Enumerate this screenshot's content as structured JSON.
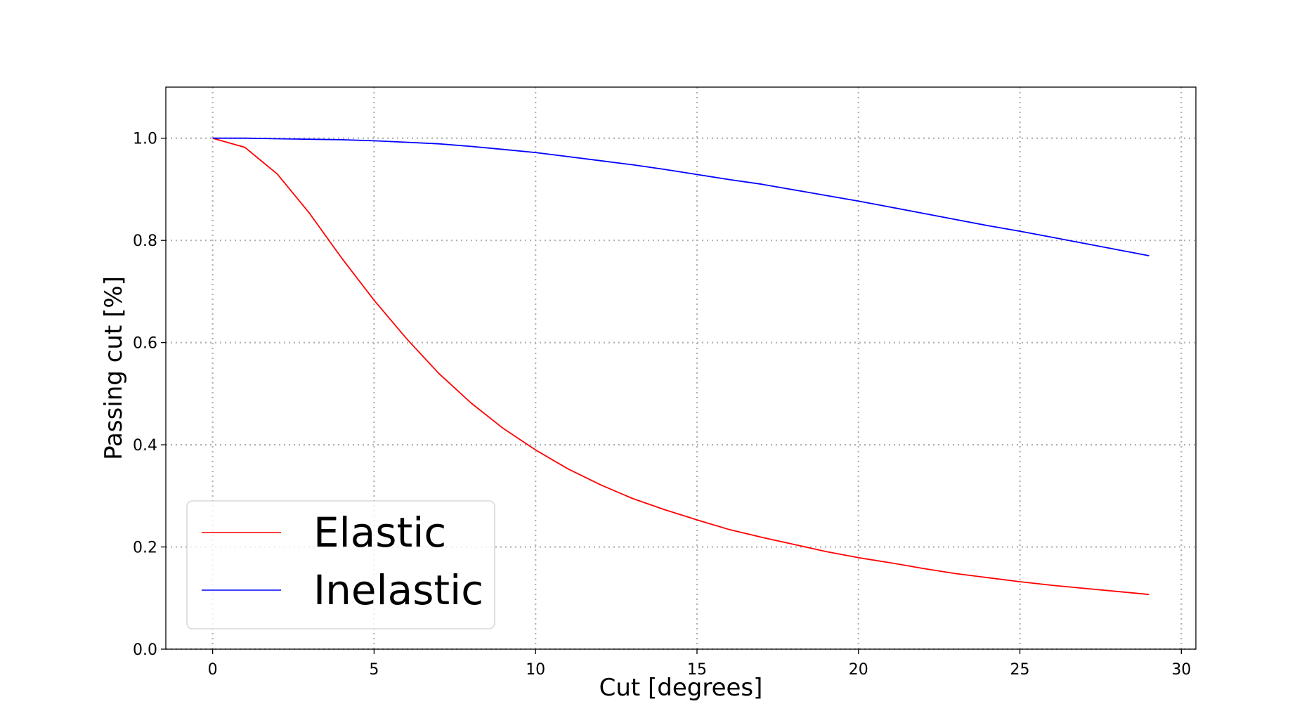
{
  "chart_data": {
    "type": "line",
    "title": "",
    "xlabel": "Cut [degrees]",
    "ylabel": "Passing cut [%]",
    "xlim": [
      -1.45,
      30.45
    ],
    "ylim": [
      0.0,
      1.1
    ],
    "xticks": [
      0,
      5,
      10,
      15,
      20,
      25,
      30
    ],
    "xtick_labels": [
      "0",
      "5",
      "10",
      "15",
      "20",
      "25",
      "30"
    ],
    "yticks": [
      0.0,
      0.2,
      0.4,
      0.6,
      0.8,
      1.0
    ],
    "ytick_labels": [
      "0.0",
      "0.2",
      "0.4",
      "0.6",
      "0.8",
      "1.0"
    ],
    "grid": true,
    "legend_position": "lower-left",
    "x": [
      0,
      1,
      2,
      3,
      4,
      5,
      6,
      7,
      8,
      9,
      10,
      11,
      12,
      13,
      14,
      15,
      16,
      17,
      18,
      19,
      20,
      21,
      22,
      23,
      24,
      25,
      26,
      27,
      28,
      29
    ],
    "series": [
      {
        "name": "Elastic",
        "color": "#ff0000",
        "values": [
          1.0,
          0.982,
          0.93,
          0.853,
          0.765,
          0.683,
          0.608,
          0.54,
          0.482,
          0.432,
          0.39,
          0.353,
          0.322,
          0.295,
          0.273,
          0.253,
          0.234,
          0.219,
          0.205,
          0.191,
          0.179,
          0.169,
          0.158,
          0.148,
          0.14,
          0.132,
          0.125,
          0.119,
          0.113,
          0.107
        ]
      },
      {
        "name": "Inelastic",
        "color": "#0000ff",
        "values": [
          1.0,
          1.0,
          0.999,
          0.998,
          0.997,
          0.995,
          0.992,
          0.989,
          0.984,
          0.978,
          0.972,
          0.964,
          0.956,
          0.948,
          0.939,
          0.929,
          0.919,
          0.91,
          0.899,
          0.888,
          0.877,
          0.865,
          0.853,
          0.841,
          0.829,
          0.818,
          0.806,
          0.794,
          0.782,
          0.77
        ]
      }
    ]
  }
}
